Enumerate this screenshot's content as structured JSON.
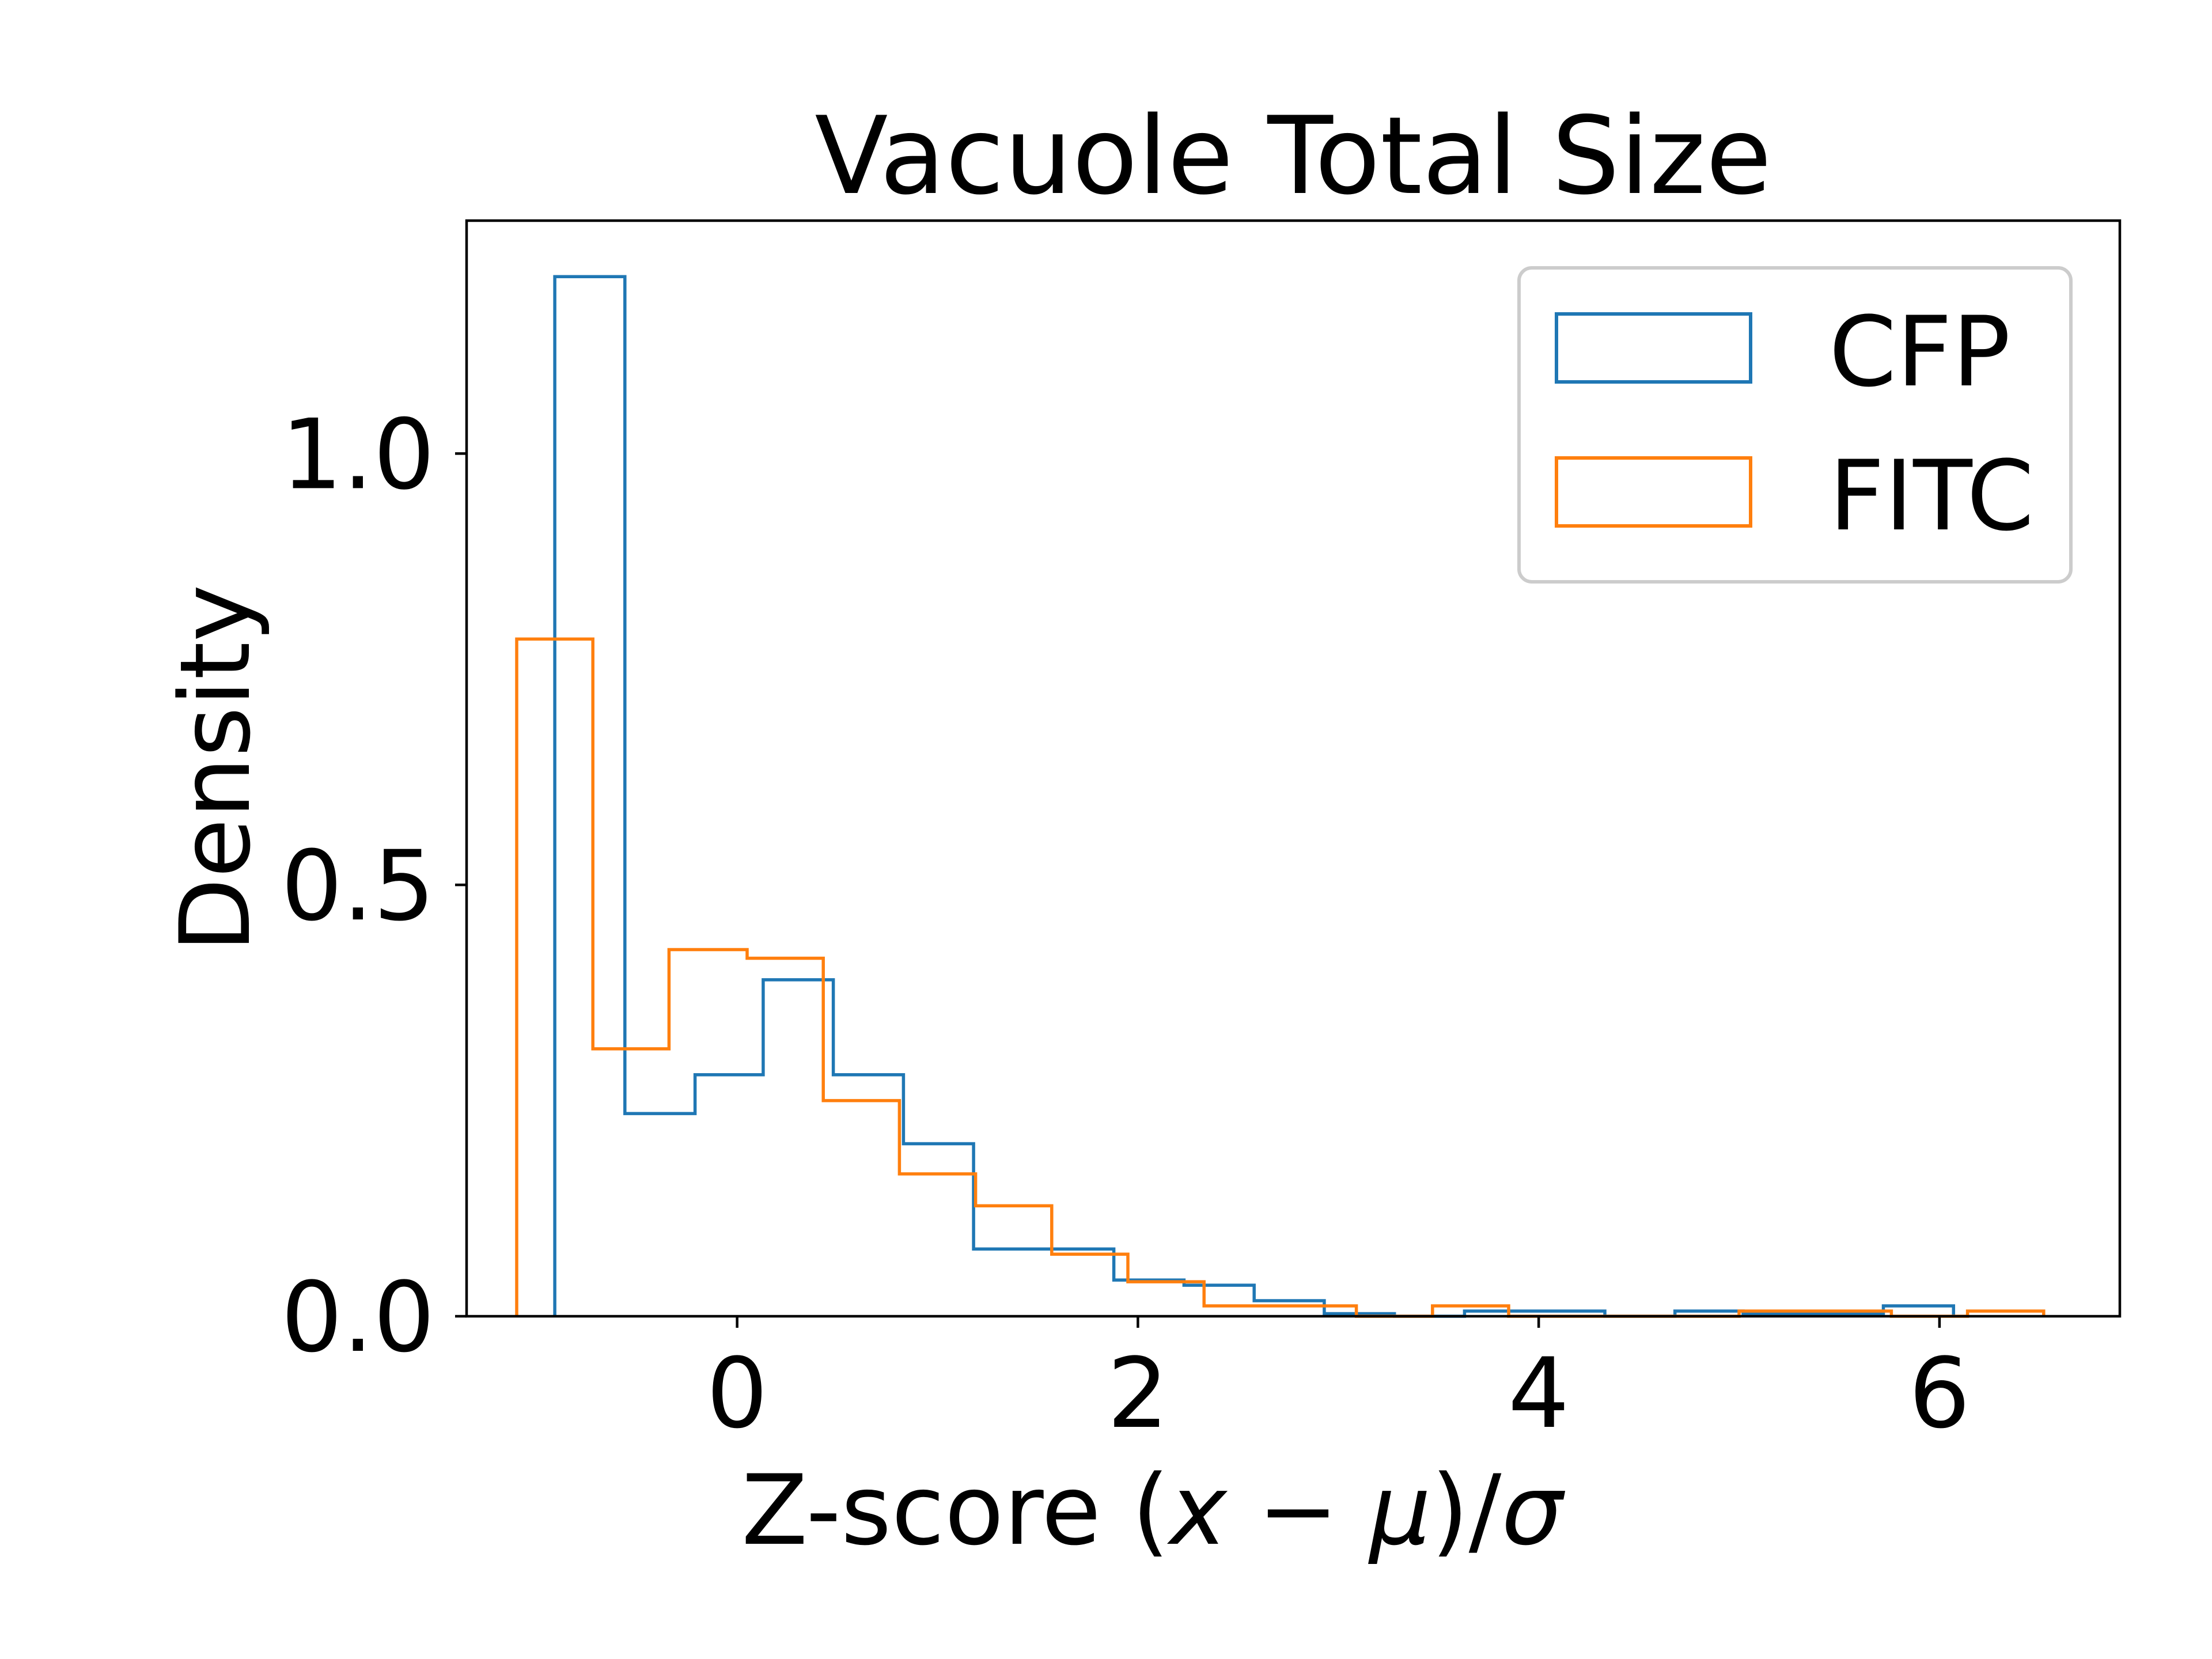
{
  "chart_data": {
    "type": "histogram",
    "title": "Vacuole Total Size",
    "xlabel": {
      "prefix": "Z-score (",
      "x": "x",
      "minus": " − ",
      "mu": "μ",
      "mid": ")/",
      "sigma": "σ"
    },
    "ylabel": "Density",
    "xlim": [
      -1.35,
      6.9
    ],
    "ylim": [
      0,
      1.27
    ],
    "x_ticks": [
      {
        "value": 0,
        "label": "0"
      },
      {
        "value": 2,
        "label": "2"
      },
      {
        "value": 4,
        "label": "4"
      },
      {
        "value": 6,
        "label": "6"
      }
    ],
    "y_ticks": [
      {
        "value": 0,
        "label": "0.0"
      },
      {
        "value": 0.5,
        "label": "0.5"
      },
      {
        "value": 1.0,
        "label": "1.0"
      }
    ],
    "legend": {
      "position": "top-right"
    },
    "series": [
      {
        "name": "CFP",
        "color": "#1f77b4",
        "bin_edges": [
          -0.91,
          -0.56,
          -0.21,
          0.13,
          0.48,
          0.83,
          1.18,
          1.53,
          1.88,
          2.23,
          2.58,
          2.93,
          3.28,
          3.63,
          3.98,
          4.33,
          4.68,
          5.02,
          5.37,
          5.72,
          6.07
        ],
        "values": [
          1.205,
          0.235,
          0.28,
          0.39,
          0.28,
          0.2,
          0.078,
          0.078,
          0.042,
          0.036,
          0.018,
          0.003,
          0.0,
          0.006,
          0.006,
          0.0,
          0.006,
          0.003,
          0.003,
          0.012
        ]
      },
      {
        "name": "FITC",
        "color": "#ff7f0e",
        "bin_edges": [
          -1.1,
          -0.72,
          -0.34,
          0.05,
          0.43,
          0.81,
          1.19,
          1.57,
          1.95,
          2.33,
          2.71,
          3.09,
          3.47,
          3.85,
          4.23,
          4.61,
          5.0,
          5.38,
          5.76,
          6.14,
          6.52
        ],
        "values": [
          0.785,
          0.31,
          0.425,
          0.415,
          0.25,
          0.165,
          0.128,
          0.072,
          0.04,
          0.012,
          0.012,
          0.0,
          0.012,
          0.0,
          0.0,
          0.0,
          0.006,
          0.006,
          0.0,
          0.006
        ]
      }
    ]
  }
}
